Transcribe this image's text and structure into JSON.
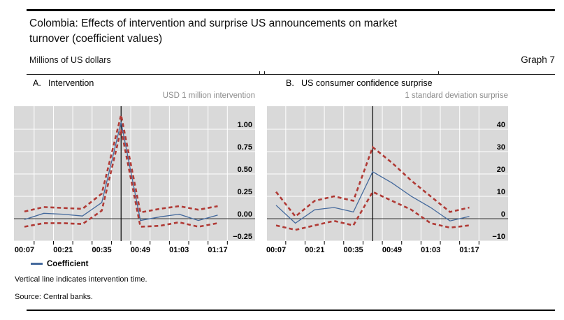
{
  "header": {
    "title": "Colombia: Effects of intervention and surprise US announcements on market turnover (coefficient values)",
    "unit_label": "Millions of US dollars",
    "graph_label": "Graph 7"
  },
  "legend": {
    "coefficient_label": "Coefficient"
  },
  "footnotes": [
    "Vertical line indicates intervention time.",
    "Source: Central banks."
  ],
  "colors": {
    "plot_bg": "#d9d9d9",
    "gridline": "#ffffff",
    "coefficient_blue": "#44699c",
    "band_red": "#b03a35",
    "axis_black": "#000000",
    "zero_line": "#333333",
    "subtitle_gray": "#8c8c8c"
  },
  "chart_data": [
    {
      "panel_letter": "A.",
      "title": "Intervention",
      "unit_note": "USD 1 million intervention",
      "type": "line",
      "x": [
        "00:07",
        "00:14",
        "00:21",
        "00:28",
        "00:35",
        "00:42",
        "00:49",
        "00:56",
        "01:03",
        "01:10",
        "01:17"
      ],
      "x_tick_labels": [
        "00:07",
        "00:21",
        "00:35",
        "00:49",
        "01:03",
        "01:17"
      ],
      "vline_x": "00:42",
      "vline_meaning": "intervention time",
      "ylim": [
        -0.25,
        1.26
      ],
      "yticks": [
        1.0,
        0.75,
        0.5,
        0.25,
        0.0,
        -0.25
      ],
      "ytick_labels": [
        "1.00",
        "0.75",
        "0.50",
        "0.25",
        "0.00",
        "−0.25"
      ],
      "grid": true,
      "series": [
        {
          "name": "Coefficient",
          "style": "solid",
          "color": "#44699c",
          "values": [
            -0.01,
            0.06,
            0.05,
            0.03,
            0.18,
            1.08,
            -0.02,
            0.02,
            0.05,
            -0.02,
            0.04
          ]
        },
        {
          "name": "Upper confidence band",
          "style": "dashed",
          "color": "#b03a35",
          "values": [
            0.08,
            0.13,
            0.12,
            0.11,
            0.28,
            1.16,
            0.07,
            0.11,
            0.14,
            0.1,
            0.14
          ]
        },
        {
          "name": "Lower confidence band",
          "style": "dashed",
          "color": "#b03a35",
          "values": [
            -0.09,
            -0.05,
            -0.05,
            -0.06,
            0.09,
            1.0,
            -0.09,
            -0.08,
            -0.04,
            -0.09,
            -0.05
          ]
        }
      ]
    },
    {
      "panel_letter": "B.",
      "title": "US consumer confidence surprise",
      "unit_note": "1 standard deviation surprise",
      "type": "line",
      "x": [
        "00:07",
        "00:14",
        "00:21",
        "00:28",
        "00:35",
        "00:42",
        "00:49",
        "00:56",
        "01:03",
        "01:10",
        "01:17"
      ],
      "x_tick_labels": [
        "00:07",
        "00:21",
        "00:35",
        "00:49",
        "01:03",
        "01:17"
      ],
      "vline_x": "00:42",
      "vline_meaning": "intervention time",
      "ylim": [
        -10,
        50.3
      ],
      "yticks": [
        40,
        30,
        20,
        10,
        0,
        -10
      ],
      "ytick_labels": [
        "40",
        "30",
        "20",
        "10",
        "0",
        "−10"
      ],
      "grid": true,
      "series": [
        {
          "name": "Coefficient",
          "style": "solid",
          "color": "#44699c",
          "values": [
            6,
            -2,
            4,
            5,
            3,
            21,
            16,
            10,
            5,
            -1,
            1
          ]
        },
        {
          "name": "Upper confidence band",
          "style": "dashed",
          "color": "#b03a35",
          "values": [
            12,
            1,
            8,
            10,
            8,
            32,
            25,
            17,
            10,
            3,
            5
          ]
        },
        {
          "name": "Lower confidence band",
          "style": "dashed",
          "color": "#b03a35",
          "values": [
            -3,
            -5,
            -3,
            -1,
            -3,
            12,
            8,
            4,
            -2,
            -4,
            -3
          ]
        }
      ]
    }
  ]
}
